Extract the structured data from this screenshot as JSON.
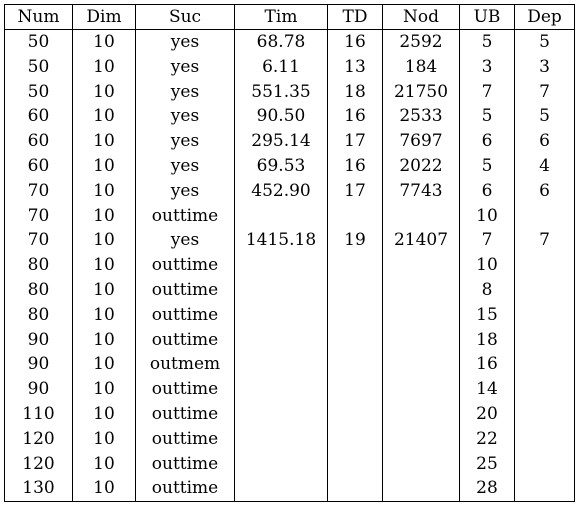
{
  "table": {
    "headers": [
      "Num",
      "Dim",
      "Suc",
      "Tim",
      "TD",
      "Nod",
      "UB",
      "Dep"
    ],
    "rows": [
      [
        "50",
        "10",
        "yes",
        "68.78",
        "16",
        "2592",
        "5",
        "5"
      ],
      [
        "50",
        "10",
        "yes",
        "6.11",
        "13",
        "184",
        "3",
        "3"
      ],
      [
        "50",
        "10",
        "yes",
        "551.35",
        "18",
        "21750",
        "7",
        "7"
      ],
      [
        "60",
        "10",
        "yes",
        "90.50",
        "16",
        "2533",
        "5",
        "5"
      ],
      [
        "60",
        "10",
        "yes",
        "295.14",
        "17",
        "7697",
        "6",
        "6"
      ],
      [
        "60",
        "10",
        "yes",
        "69.53",
        "16",
        "2022",
        "5",
        "4"
      ],
      [
        "70",
        "10",
        "yes",
        "452.90",
        "17",
        "7743",
        "6",
        "6"
      ],
      [
        "70",
        "10",
        "outtime",
        "",
        "",
        "",
        "10",
        ""
      ],
      [
        "70",
        "10",
        "yes",
        "1415.18",
        "19",
        "21407",
        "7",
        "7"
      ],
      [
        "80",
        "10",
        "outtime",
        "",
        "",
        "",
        "10",
        ""
      ],
      [
        "80",
        "10",
        "outtime",
        "",
        "",
        "",
        "8",
        ""
      ],
      [
        "80",
        "10",
        "outtime",
        "",
        "",
        "",
        "15",
        ""
      ],
      [
        "90",
        "10",
        "outtime",
        "",
        "",
        "",
        "18",
        ""
      ],
      [
        "90",
        "10",
        "outmem",
        "",
        "",
        "",
        "16",
        ""
      ],
      [
        "90",
        "10",
        "outtime",
        "",
        "",
        "",
        "14",
        ""
      ],
      [
        "110",
        "10",
        "outtime",
        "",
        "",
        "",
        "20",
        ""
      ],
      [
        "120",
        "10",
        "outtime",
        "",
        "",
        "",
        "22",
        ""
      ],
      [
        "120",
        "10",
        "outtime",
        "",
        "",
        "",
        "25",
        ""
      ],
      [
        "130",
        "10",
        "outtime",
        "",
        "",
        "",
        "28",
        ""
      ]
    ]
  }
}
